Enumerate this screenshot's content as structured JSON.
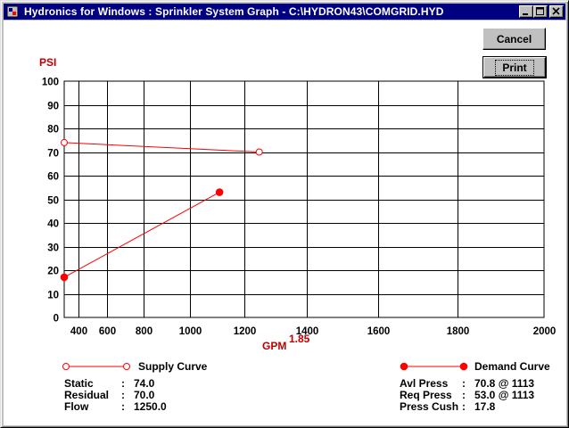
{
  "window": {
    "title": "Hydronics for Windows : Sprinkler System Graph - C:\\HYDRON43\\COMGRID.HYD",
    "icon": "app-icon"
  },
  "buttons": {
    "cancel": "Cancel",
    "print": "Print"
  },
  "chart_data": {
    "type": "line",
    "ylabel": "PSI",
    "xlabel": "GPM",
    "xlabel_exponent": "1.85",
    "x_scale": "power-1.85",
    "xlim": [
      250,
      2000
    ],
    "ylim": [
      0,
      100
    ],
    "x_ticks": [
      400,
      600,
      800,
      1000,
      1200,
      1400,
      1600,
      1800,
      2000
    ],
    "y_ticks": [
      0,
      10,
      20,
      30,
      40,
      50,
      60,
      70,
      80,
      90,
      100
    ],
    "grid": true,
    "colors": {
      "series": "#ff0000",
      "axis_label": "#c00000"
    },
    "series": [
      {
        "name": "Supply Curve",
        "marker": "open-circle",
        "points": [
          [
            250,
            74.0
          ],
          [
            1250,
            70.0
          ]
        ]
      },
      {
        "name": "Demand Curve",
        "marker": "filled-circle",
        "points": [
          [
            250,
            17
          ],
          [
            1113,
            53.0
          ]
        ]
      }
    ]
  },
  "legend": {
    "supply": "Supply Curve",
    "demand": "Demand Curve"
  },
  "supply_info": [
    {
      "label": "Static",
      "sep": ":",
      "value": "74.0"
    },
    {
      "label": "Residual",
      "sep": ":",
      "value": "70.0"
    },
    {
      "label": "Flow",
      "sep": ":",
      "value": "1250.0"
    }
  ],
  "demand_info": [
    {
      "label": "Avl Press",
      "sep": ":",
      "value": "70.8 @ 1113"
    },
    {
      "label": "Req Press",
      "sep": ":",
      "value": "53.0 @ 1113"
    },
    {
      "label": "Press Cush",
      "sep": ":",
      "value": "17.8"
    }
  ]
}
